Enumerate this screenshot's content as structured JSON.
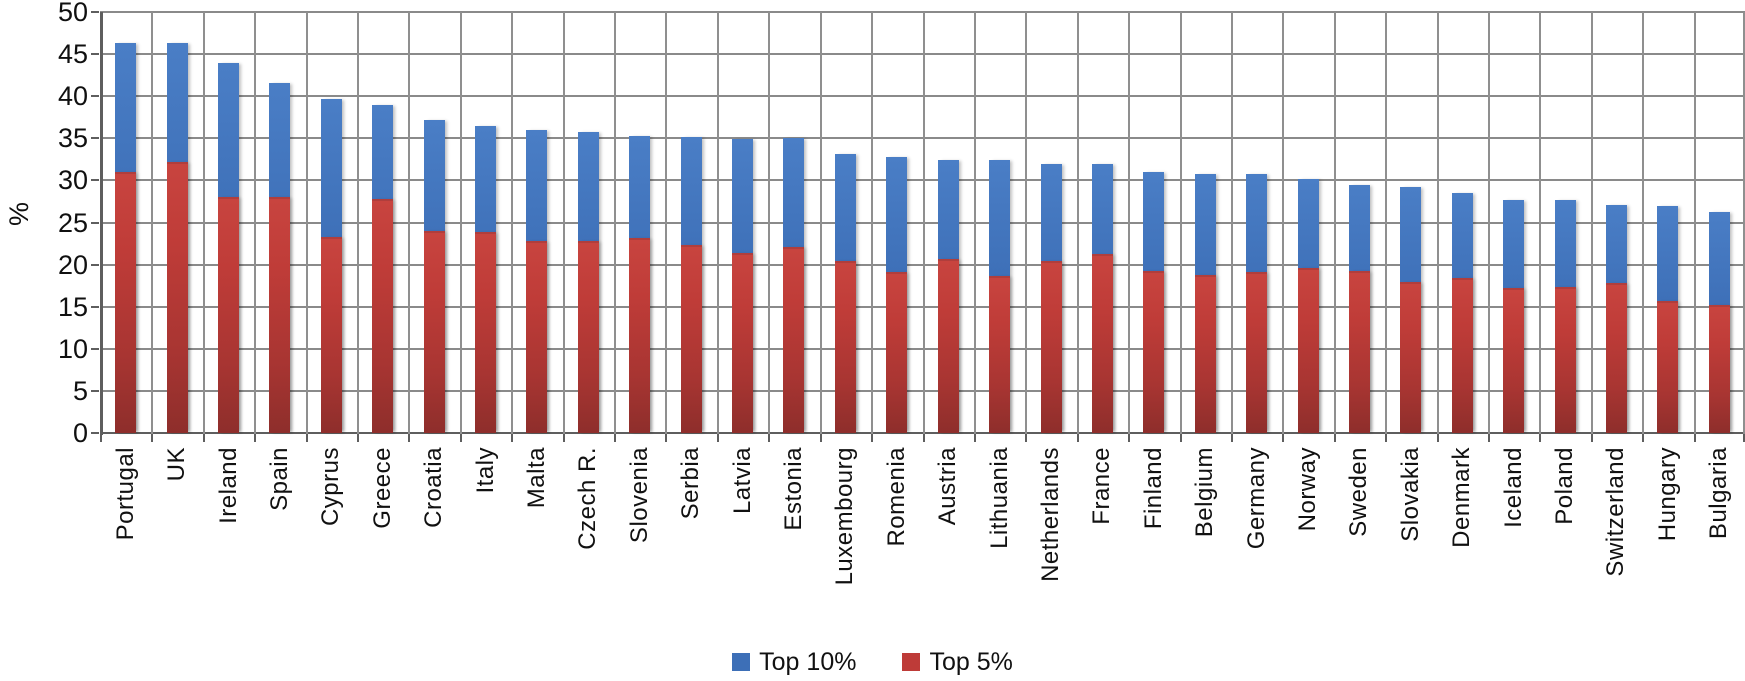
{
  "chart_data": {
    "type": "bar",
    "title": "",
    "xlabel": "",
    "ylabel": "%",
    "ylim": [
      0,
      50
    ],
    "ytick_step": 5,
    "yticks": [
      "0",
      "5",
      "10",
      "15",
      "20",
      "25",
      "30",
      "35",
      "40",
      "45",
      "50"
    ],
    "grid": "both-horizontal-and-vertical",
    "legend_position": "bottom-center",
    "bar_style": "overlapped: Top 5% bar drawn in front of Top 10% bar, same x position",
    "categories": [
      "Portugal",
      "UK",
      "Ireland",
      "Spain",
      "Cyprus",
      "Greece",
      "Croatia",
      "Italy",
      "Malta",
      "Czech R.",
      "Slovenia",
      "Serbia",
      "Latvia",
      "Estonia",
      "Luxembourg",
      "Romenia",
      "Austria",
      "Lithuania",
      "Netherlands",
      "France",
      "Finland",
      "Belgium",
      "Germany",
      "Norway",
      "Sweden",
      "Slovakia",
      "Denmark",
      "Iceland",
      "Poland",
      "Switzerland",
      "Hungary",
      "Bulgaria"
    ],
    "series": [
      {
        "name": "Top 10%",
        "color": "#3D6FB7",
        "values": [
          46.3,
          46.3,
          43.9,
          41.6,
          39.7,
          38.9,
          37.1,
          36.4,
          36.0,
          35.7,
          35.3,
          35.1,
          34.9,
          35.0,
          33.1,
          32.8,
          32.4,
          32.4,
          31.9,
          31.9,
          31.0,
          30.8,
          30.8,
          30.1,
          29.4,
          29.2,
          28.5,
          27.7,
          27.7,
          27.1,
          26.9,
          26.3
        ]
      },
      {
        "name": "Top 5%",
        "color": "#BE3B38",
        "values": [
          31.0,
          32.2,
          28.0,
          28.0,
          23.3,
          27.8,
          24.0,
          23.9,
          22.8,
          22.8,
          23.2,
          22.3,
          21.4,
          22.1,
          20.4,
          19.1,
          20.7,
          18.6,
          20.4,
          21.3,
          19.2,
          18.8,
          19.1,
          19.6,
          19.3,
          17.9,
          18.4,
          17.2,
          17.3,
          17.8,
          15.7,
          15.2
        ]
      }
    ]
  },
  "legend": {
    "items": [
      {
        "label": "Top 10%",
        "color": "#3D6FB7"
      },
      {
        "label": "Top 5%",
        "color": "#BE3B38"
      }
    ]
  },
  "colors": {
    "bar_blue": "#3D6FB7",
    "bar_red": "#BE3B38",
    "gridline": "#8A8A8A",
    "axis": "#5E5E5E",
    "text": "#111111",
    "background": "#FFFFFF"
  }
}
